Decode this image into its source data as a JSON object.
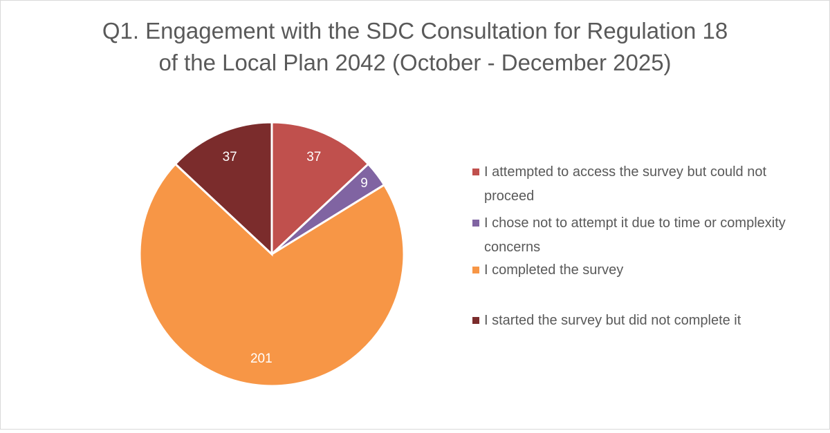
{
  "chart_data": {
    "type": "pie",
    "title": "Q1. Engagement with the SDC Consultation for Regulation 18 of the Local Plan 2042 (October - December 2025)",
    "title_lines": [
      "Q1. Engagement with the SDC Consultation for Regulation 18",
      "of the Local Plan 2042 (October - December 2025)"
    ],
    "legend_position": "right",
    "slices": [
      {
        "label": "I attempted to access the survey but could not proceed",
        "value": 37,
        "data_label": "37",
        "color": "#c0504d"
      },
      {
        "label": "I chose not to attempt it due to time or complexity concerns",
        "value": 9,
        "data_label": "9",
        "color": "#8064a2"
      },
      {
        "label": "I completed the survey",
        "value": 201,
        "data_label": "201",
        "color": "#f79646"
      },
      {
        "label": "I started the survey but did not complete it",
        "value": 37,
        "data_label": "37",
        "color": "#7b2c2c"
      }
    ]
  }
}
